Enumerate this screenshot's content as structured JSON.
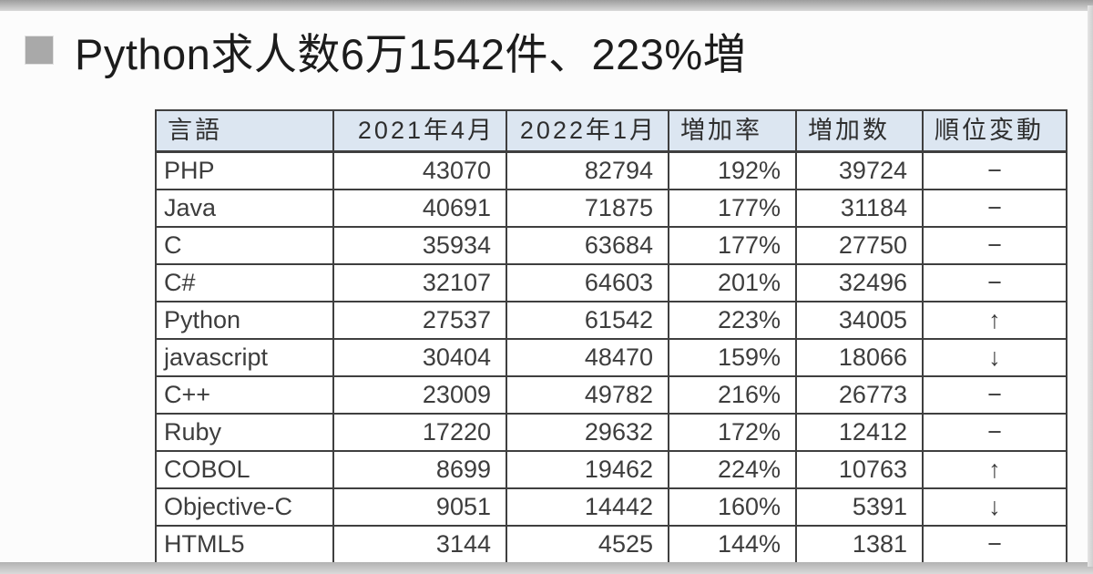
{
  "headline": {
    "bullet_icon": "gray-square-bullet",
    "text": "Python求人数6万1542件、223%増"
  },
  "table": {
    "columns": [
      {
        "label": "言語",
        "align": "left"
      },
      {
        "label": "2021年4月",
        "align": "right"
      },
      {
        "label": "2022年1月",
        "align": "right"
      },
      {
        "label": "増加率",
        "align": "left"
      },
      {
        "label": "増加数",
        "align": "left"
      },
      {
        "label": "順位変動",
        "align": "left"
      }
    ],
    "rows": [
      {
        "language": "PHP",
        "apr_2021": "43070",
        "jan_2022": "82794",
        "growth_rate": "192%",
        "growth_count": "39724",
        "rank_change": "−"
      },
      {
        "language": "Java",
        "apr_2021": "40691",
        "jan_2022": "71875",
        "growth_rate": "177%",
        "growth_count": "31184",
        "rank_change": "−"
      },
      {
        "language": "C",
        "apr_2021": "35934",
        "jan_2022": "63684",
        "growth_rate": "177%",
        "growth_count": "27750",
        "rank_change": "−"
      },
      {
        "language": "C#",
        "apr_2021": "32107",
        "jan_2022": "64603",
        "growth_rate": "201%",
        "growth_count": "32496",
        "rank_change": "−"
      },
      {
        "language": "Python",
        "apr_2021": "27537",
        "jan_2022": "61542",
        "growth_rate": "223%",
        "growth_count": "34005",
        "rank_change": "↑"
      },
      {
        "language": "javascript",
        "apr_2021": "30404",
        "jan_2022": "48470",
        "growth_rate": "159%",
        "growth_count": "18066",
        "rank_change": "↓"
      },
      {
        "language": "C++",
        "apr_2021": "23009",
        "jan_2022": "49782",
        "growth_rate": "216%",
        "growth_count": "26773",
        "rank_change": "−"
      },
      {
        "language": "Ruby",
        "apr_2021": "17220",
        "jan_2022": "29632",
        "growth_rate": "172%",
        "growth_count": "12412",
        "rank_change": "−"
      },
      {
        "language": "COBOL",
        "apr_2021": "8699",
        "jan_2022": "19462",
        "growth_rate": "224%",
        "growth_count": "10763",
        "rank_change": "↑"
      },
      {
        "language": "Objective-C",
        "apr_2021": "9051",
        "jan_2022": "14442",
        "growth_rate": "160%",
        "growth_count": "5391",
        "rank_change": "↓"
      },
      {
        "language": "HTML5",
        "apr_2021": "3144",
        "jan_2022": "4525",
        "growth_rate": "144%",
        "growth_count": "1381",
        "rank_change": "−"
      }
    ]
  },
  "chart_data": {
    "type": "table",
    "title": "Python求人数6万1542件、223%増",
    "columns": [
      "言語",
      "2021年4月",
      "2022年1月",
      "増加率",
      "増加数",
      "順位変動"
    ],
    "categories": [
      "PHP",
      "Java",
      "C",
      "C#",
      "Python",
      "javascript",
      "C++",
      "Ruby",
      "COBOL",
      "Objective-C",
      "HTML5"
    ],
    "series": [
      {
        "name": "2021年4月",
        "values": [
          43070,
          40691,
          35934,
          32107,
          27537,
          30404,
          23009,
          17220,
          8699,
          9051,
          3144
        ]
      },
      {
        "name": "2022年1月",
        "values": [
          82794,
          71875,
          63684,
          64603,
          61542,
          48470,
          49782,
          29632,
          19462,
          14442,
          4525
        ]
      },
      {
        "name": "増加率(%)",
        "values": [
          192,
          177,
          177,
          201,
          223,
          159,
          216,
          172,
          224,
          160,
          144
        ]
      },
      {
        "name": "増加数",
        "values": [
          39724,
          31184,
          27750,
          32496,
          34005,
          18066,
          26773,
          12412,
          10763,
          5391,
          1381
        ]
      }
    ],
    "rank_change": [
      "−",
      "−",
      "−",
      "−",
      "↑",
      "↓",
      "−",
      "−",
      "↑",
      "↓",
      "−"
    ]
  },
  "colors": {
    "header_background": "#dce6f1",
    "table_border": "#3f3f3f",
    "cell_text": "#3d3d3d",
    "headline_text": "#1c1c1c",
    "bullet_gray": "#a9a9a9",
    "edge_bar_gray": "#b2b2b2",
    "page_background": "#fcfcfc"
  }
}
